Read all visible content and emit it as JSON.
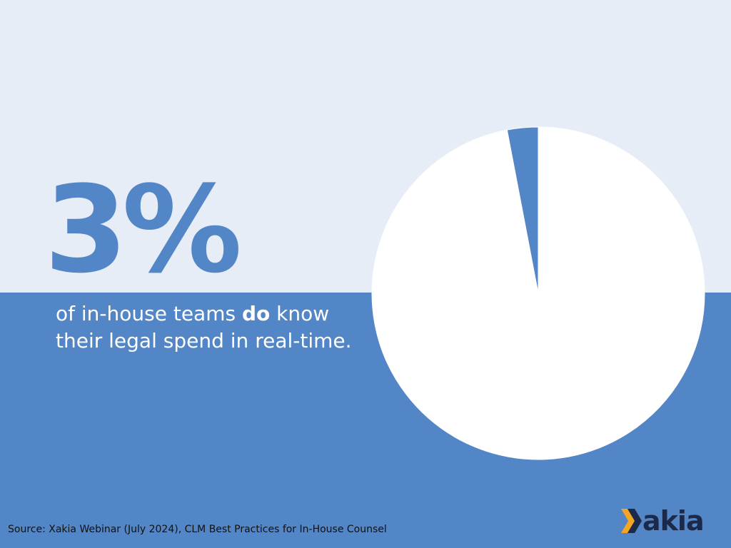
{
  "stat": {
    "value": "3%",
    "caption_before": "of in-house teams ",
    "caption_bold": "do",
    "caption_after": " know their legal spend in real-time."
  },
  "source": "Source: Xakia Webinar (July 2024), CLM Best Practices for In-House Counsel",
  "brand": {
    "logo_text": "akia",
    "logo_icon": "xakia-chevron-icon",
    "colors": {
      "accent_blue": "#5386c6",
      "light_bg": "#e7edf7",
      "navy": "#1b2a4a",
      "orange": "#f2a623"
    }
  },
  "chart_data": {
    "type": "pie",
    "title": "",
    "slices": [
      {
        "label": "",
        "value": 97,
        "color": "#ffffff"
      },
      {
        "label": "",
        "value": 3,
        "color": "#5386c6"
      }
    ]
  }
}
